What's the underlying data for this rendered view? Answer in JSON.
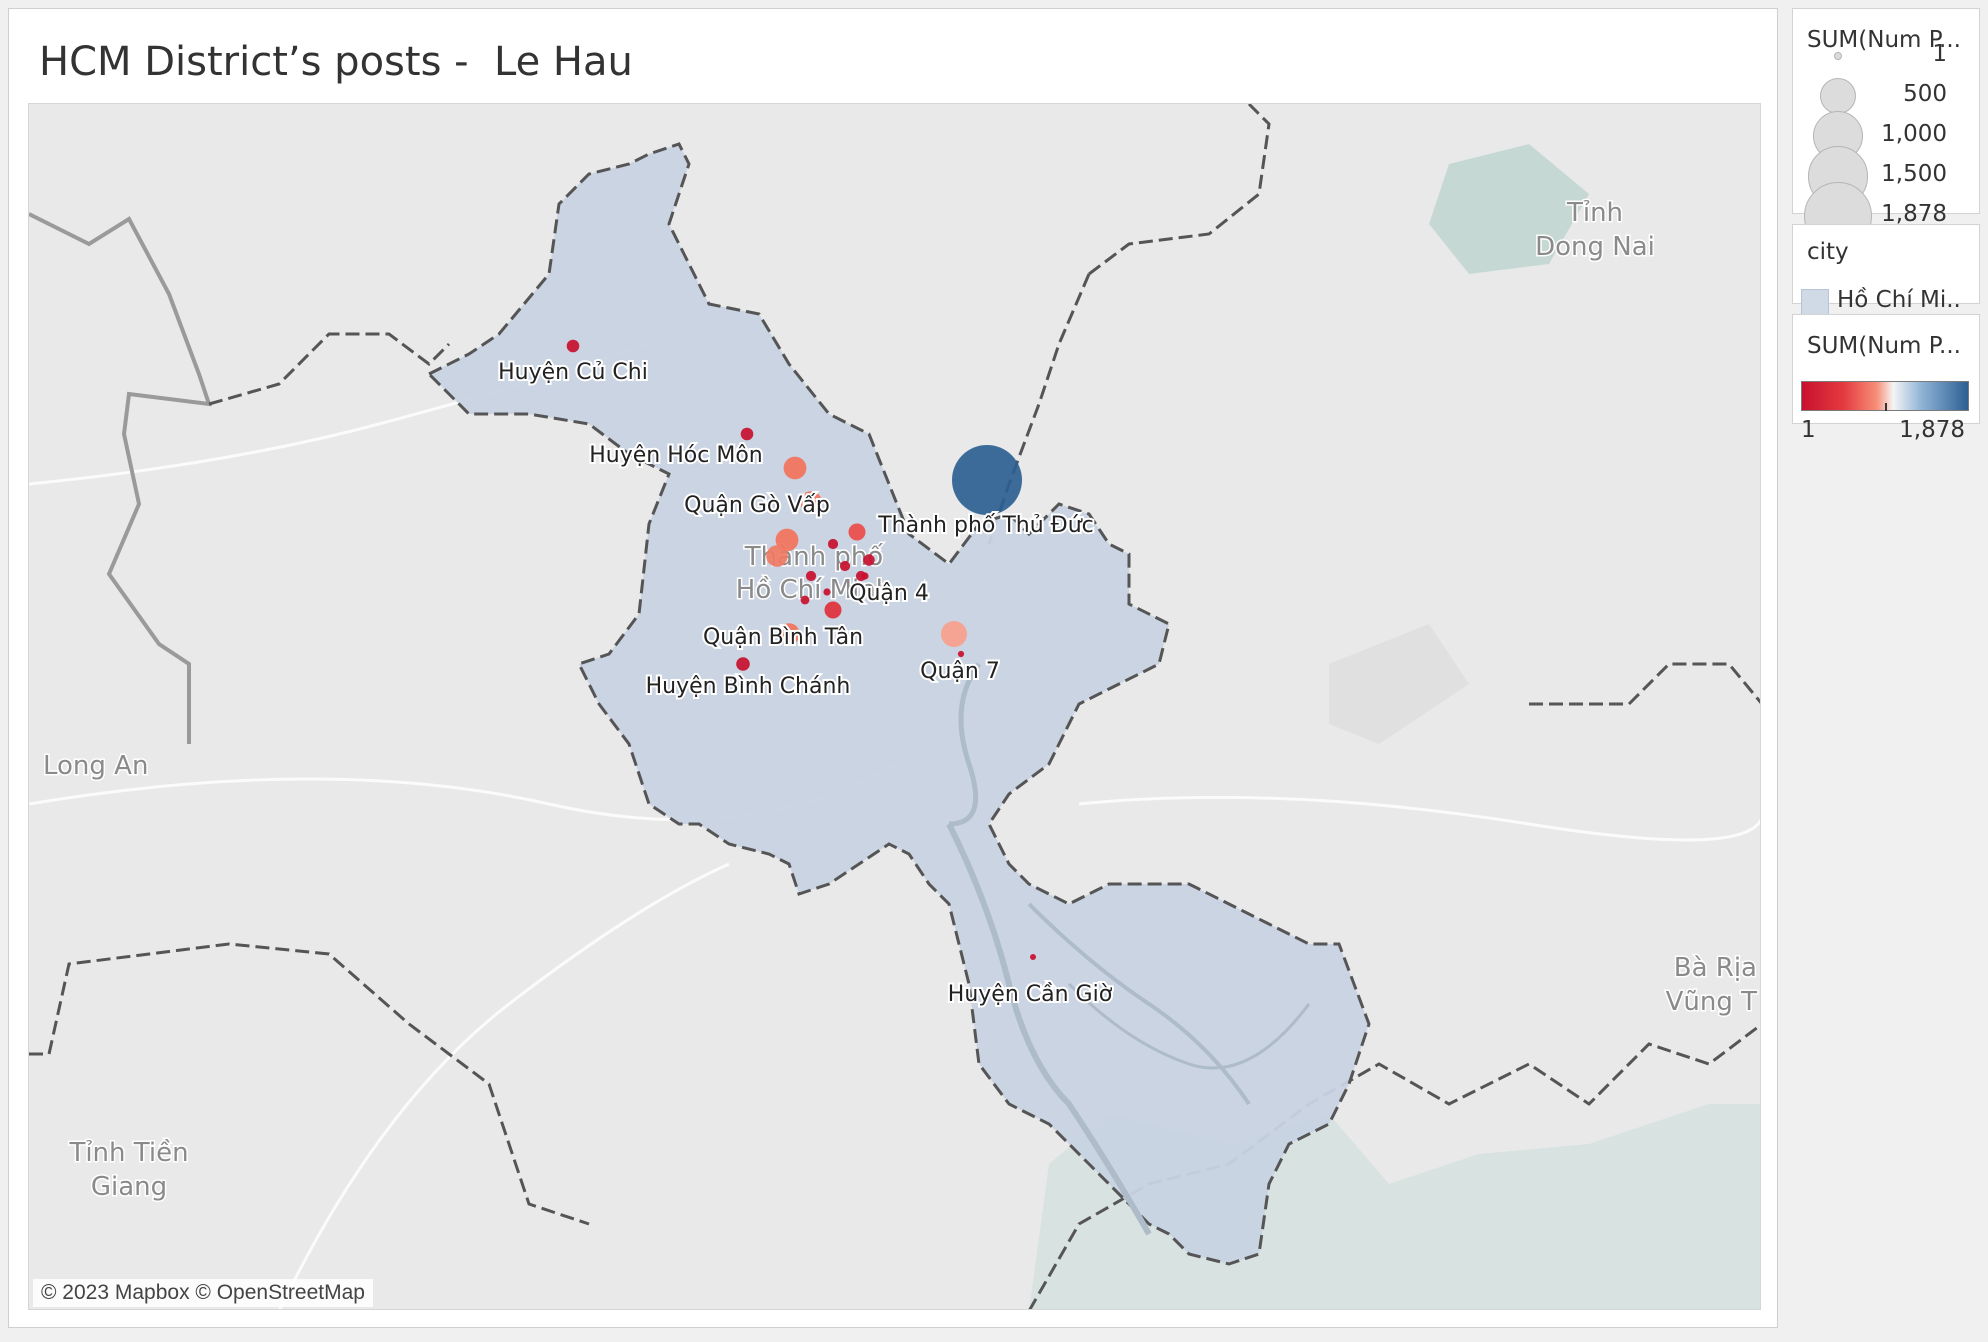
{
  "title": "HCM District’s posts -  Le Hau",
  "map": {
    "copyright": "© 2023 Mapbox © OpenStreetMap",
    "region_labels": [
      "Tỉnh",
      "Dong Nai",
      "Long An",
      "Bà Rịa",
      "Vũng T",
      "Tỉnh Tiền",
      "Giang",
      "Thành phố",
      "Hồ Chí Minh"
    ],
    "city_fill_color": "#c8d3e2",
    "district_labels": [
      {
        "name": "Huyện Củ Chi"
      },
      {
        "name": "Huyện Hóc Môn"
      },
      {
        "name": "Quận Gò Vấp"
      },
      {
        "name": "Thành phố Thủ Đức"
      },
      {
        "name": "Quận 4"
      },
      {
        "name": "Quận Bình Tân"
      },
      {
        "name": "Quận 7"
      },
      {
        "name": "Huyện Bình Chánh"
      },
      {
        "name": "Huyện Cần Giờ"
      }
    ],
    "markers": [
      {
        "district": "Huyện Củ Chi",
        "posts": 60,
        "color": "#c8102e"
      },
      {
        "district": "Huyện Hóc Môn",
        "posts": 60,
        "color": "#c8102e"
      },
      {
        "district": "unlabeled-1",
        "posts": 200,
        "color": "#f2735c"
      },
      {
        "district": "Quận Gò Vấp",
        "posts": 180,
        "color": "#f2735c"
      },
      {
        "district": "Thành phố Thủ Đức",
        "posts": 1878,
        "color": "#2d5f93"
      },
      {
        "district": "unlabeled-2",
        "posts": 200,
        "color": "#f2735c"
      },
      {
        "district": "unlabeled-3",
        "posts": 180,
        "color": "#f07a63"
      },
      {
        "district": "unlabeled-4",
        "posts": 110,
        "color": "#ea4c4a"
      },
      {
        "district": "unlabeled-5",
        "posts": 40,
        "color": "#c8102e"
      },
      {
        "district": "unlabeled-6",
        "posts": 50,
        "color": "#c8102e"
      },
      {
        "district": "unlabeled-7",
        "posts": 40,
        "color": "#c8102e"
      },
      {
        "district": "unlabeled-8",
        "posts": 40,
        "color": "#c8102e"
      },
      {
        "district": "unlabeled-9",
        "posts": 40,
        "color": "#c8102e"
      },
      {
        "district": "unlabeled-10",
        "posts": 20,
        "color": "#c8102e"
      },
      {
        "district": "unlabeled-11",
        "posts": 20,
        "color": "#c8102e"
      },
      {
        "district": "unlabeled-12",
        "posts": 30,
        "color": "#c8102e"
      },
      {
        "district": "Quận 4",
        "posts": 110,
        "color": "#e0303a"
      },
      {
        "district": "Quận Bình Tân",
        "posts": 180,
        "color": "#f2735c"
      },
      {
        "district": "Quận 7",
        "posts": 260,
        "color": "#f9a08c"
      },
      {
        "district": "unlabeled-13",
        "posts": 15,
        "color": "#c8102e"
      },
      {
        "district": "Huyện Bình Chánh",
        "posts": 70,
        "color": "#c8102e"
      },
      {
        "district": "Huyện Cần Giờ",
        "posts": 1,
        "color": "#c8102e"
      }
    ]
  },
  "legend_size": {
    "title": "SUM(Num P...",
    "items": [
      {
        "label": "1"
      },
      {
        "label": "500"
      },
      {
        "label": "1,000"
      },
      {
        "label": "1,500"
      },
      {
        "label": "1,878"
      }
    ]
  },
  "legend_city": {
    "title": "city",
    "item": "Hồ Chí Mi..",
    "color": "#d0d9e6"
  },
  "legend_color": {
    "title": "SUM(Num P...",
    "min": "1",
    "max": "1,878",
    "low_color": "#c8102e",
    "high_color": "#2d5f93"
  }
}
